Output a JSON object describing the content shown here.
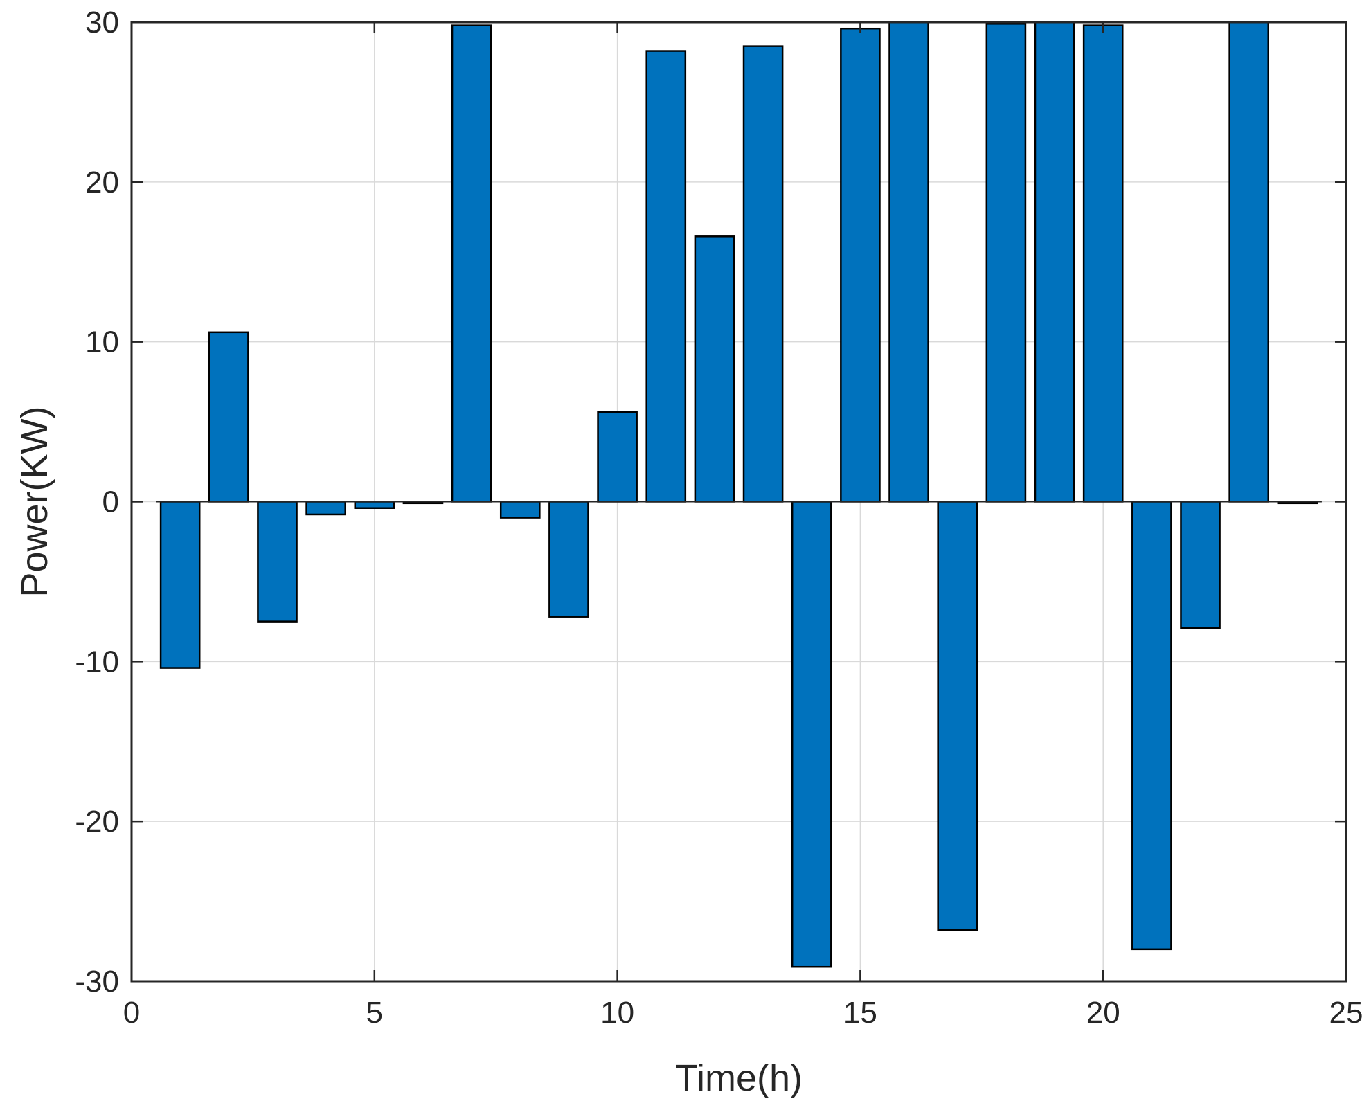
{
  "chart_data": {
    "type": "bar",
    "title": "",
    "xlabel": "Time(h)",
    "ylabel": "Power(KW)",
    "xlim": [
      0,
      25
    ],
    "ylim": [
      -30,
      30
    ],
    "xticks": [
      0,
      5,
      10,
      15,
      20,
      25
    ],
    "yticks": [
      -30,
      -20,
      -10,
      0,
      10,
      20,
      30
    ],
    "xtick_labels": [
      "0",
      "5",
      "10",
      "15",
      "20",
      "25"
    ],
    "ytick_labels": [
      "-30",
      "-20",
      "-10",
      "0",
      "10",
      "20",
      "30"
    ],
    "grid": true,
    "bar_color": "#0072bd",
    "x": [
      1,
      2,
      3,
      4,
      5,
      6,
      7,
      8,
      9,
      10,
      11,
      12,
      13,
      14,
      15,
      16,
      17,
      18,
      19,
      20,
      21,
      22,
      23,
      24
    ],
    "values": [
      -10.4,
      10.6,
      -7.5,
      -0.8,
      -0.4,
      -0.1,
      29.8,
      -1.0,
      -7.2,
      5.6,
      28.2,
      16.6,
      28.5,
      -29.1,
      29.6,
      30.0,
      -26.8,
      29.9,
      30.0,
      29.8,
      -28.0,
      -7.9,
      30.0,
      -0.1
    ]
  }
}
